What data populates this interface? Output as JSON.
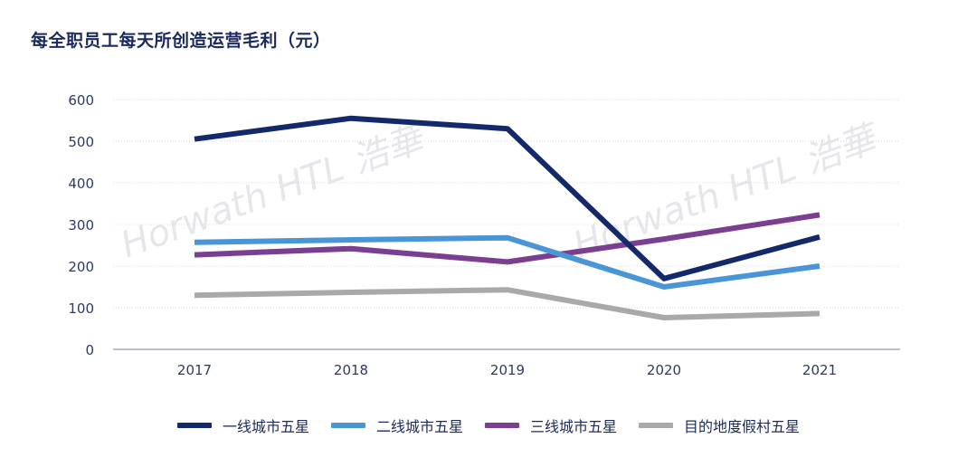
{
  "chart_data": {
    "type": "line",
    "title": "每全职员工每天所创造运营毛利（元）",
    "categories": [
      "2017",
      "2018",
      "2019",
      "2020",
      "2021"
    ],
    "ylim": [
      0,
      600
    ],
    "yticks": [
      0,
      100,
      200,
      300,
      400,
      500,
      600
    ],
    "grid": true,
    "legend_position": "bottom",
    "series": [
      {
        "name": "一线城市五星",
        "color": "#13296b",
        "values": [
          505,
          555,
          530,
          170,
          270
        ]
      },
      {
        "name": "二线城市五星",
        "color": "#4a95d6",
        "values": [
          257,
          263,
          268,
          150,
          200
        ]
      },
      {
        "name": "三线城市五星",
        "color": "#7b3f91",
        "values": [
          227,
          242,
          210,
          265,
          323
        ]
      },
      {
        "name": "目的地度假村五星",
        "color": "#a9a9ab",
        "values": [
          130,
          137,
          143,
          76,
          86
        ]
      }
    ],
    "watermark": "Horwath HTL 浩華"
  }
}
